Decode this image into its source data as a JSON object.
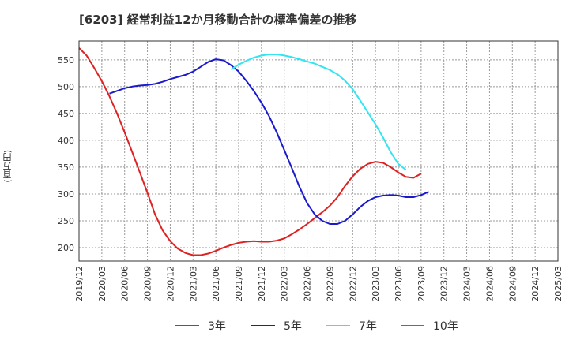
{
  "chart_data": {
    "type": "line",
    "title": "[6203]  経常利益12か月移動合計の標準偏差の推移",
    "ylabel": "(百万円)",
    "xlabel": "",
    "ylim": [
      175,
      585
    ],
    "yticks": [
      200,
      250,
      300,
      350,
      400,
      450,
      500,
      550
    ],
    "xtick_labels": [
      "2019/12",
      "2020/03",
      "2020/06",
      "2020/09",
      "2020/12",
      "2021/03",
      "2021/06",
      "2021/09",
      "2021/12",
      "2022/03",
      "2022/06",
      "2022/09",
      "2022/12",
      "2023/03",
      "2023/06",
      "2023/09",
      "2023/12",
      "2024/03",
      "2024/06",
      "2024/09",
      "2024/12",
      "2025/03"
    ],
    "grid": true,
    "legend_position": "bottom",
    "series": [
      {
        "name": "3年",
        "color": "#dd2222",
        "points": [
          [
            0,
            572
          ],
          [
            1,
            558
          ],
          [
            2,
            535
          ],
          [
            3,
            510
          ],
          [
            4,
            482
          ],
          [
            5,
            450
          ],
          [
            6,
            415
          ],
          [
            7,
            378
          ],
          [
            8,
            340
          ],
          [
            9,
            302
          ],
          [
            10,
            262
          ],
          [
            11,
            232
          ],
          [
            12,
            212
          ],
          [
            13,
            198
          ],
          [
            14,
            190
          ],
          [
            15,
            186
          ],
          [
            16,
            186
          ],
          [
            17,
            189
          ],
          [
            18,
            194
          ],
          [
            19,
            200
          ],
          [
            20,
            205
          ],
          [
            21,
            209
          ],
          [
            22,
            211
          ],
          [
            23,
            212
          ],
          [
            24,
            211
          ],
          [
            25,
            211
          ],
          [
            26,
            213
          ],
          [
            27,
            217
          ],
          [
            28,
            225
          ],
          [
            29,
            234
          ],
          [
            30,
            244
          ],
          [
            31,
            255
          ],
          [
            32,
            266
          ],
          [
            33,
            278
          ],
          [
            34,
            294
          ],
          [
            35,
            315
          ],
          [
            36,
            333
          ],
          [
            37,
            347
          ],
          [
            38,
            356
          ],
          [
            39,
            360
          ],
          [
            40,
            358
          ],
          [
            41,
            350
          ],
          [
            42,
            340
          ],
          [
            43,
            332
          ],
          [
            44,
            330
          ],
          [
            45,
            338
          ]
        ]
      },
      {
        "name": "5年",
        "color": "#1a1acc",
        "points": [
          [
            4,
            487
          ],
          [
            5,
            492
          ],
          [
            6,
            497
          ],
          [
            7,
            500
          ],
          [
            8,
            502
          ],
          [
            9,
            503
          ],
          [
            10,
            505
          ],
          [
            11,
            509
          ],
          [
            12,
            514
          ],
          [
            13,
            518
          ],
          [
            14,
            522
          ],
          [
            15,
            528
          ],
          [
            16,
            537
          ],
          [
            17,
            546
          ],
          [
            18,
            551
          ],
          [
            19,
            549
          ],
          [
            20,
            540
          ],
          [
            21,
            528
          ],
          [
            22,
            511
          ],
          [
            23,
            492
          ],
          [
            24,
            470
          ],
          [
            25,
            445
          ],
          [
            26,
            415
          ],
          [
            27,
            382
          ],
          [
            28,
            348
          ],
          [
            29,
            313
          ],
          [
            30,
            283
          ],
          [
            31,
            262
          ],
          [
            32,
            250
          ],
          [
            33,
            244
          ],
          [
            34,
            244
          ],
          [
            35,
            250
          ],
          [
            36,
            262
          ],
          [
            37,
            276
          ],
          [
            38,
            287
          ],
          [
            39,
            294
          ],
          [
            40,
            297
          ],
          [
            41,
            298
          ],
          [
            42,
            297
          ],
          [
            43,
            294
          ],
          [
            44,
            294
          ],
          [
            45,
            298
          ],
          [
            46,
            304
          ]
        ]
      },
      {
        "name": "7年",
        "color": "#33e5f0",
        "points": [
          [
            20,
            532
          ],
          [
            21,
            541
          ],
          [
            22,
            548
          ],
          [
            23,
            554
          ],
          [
            24,
            558
          ],
          [
            25,
            560
          ],
          [
            26,
            560
          ],
          [
            27,
            558
          ],
          [
            28,
            555
          ],
          [
            29,
            551
          ],
          [
            30,
            547
          ],
          [
            31,
            543
          ],
          [
            32,
            537
          ],
          [
            33,
            531
          ],
          [
            34,
            523
          ],
          [
            35,
            511
          ],
          [
            36,
            495
          ],
          [
            37,
            474
          ],
          [
            38,
            452
          ],
          [
            39,
            430
          ],
          [
            40,
            405
          ],
          [
            41,
            378
          ],
          [
            42,
            356
          ],
          [
            43,
            345
          ]
        ]
      },
      {
        "name": "10年",
        "color": "#2a9a2a",
        "points": []
      }
    ]
  }
}
